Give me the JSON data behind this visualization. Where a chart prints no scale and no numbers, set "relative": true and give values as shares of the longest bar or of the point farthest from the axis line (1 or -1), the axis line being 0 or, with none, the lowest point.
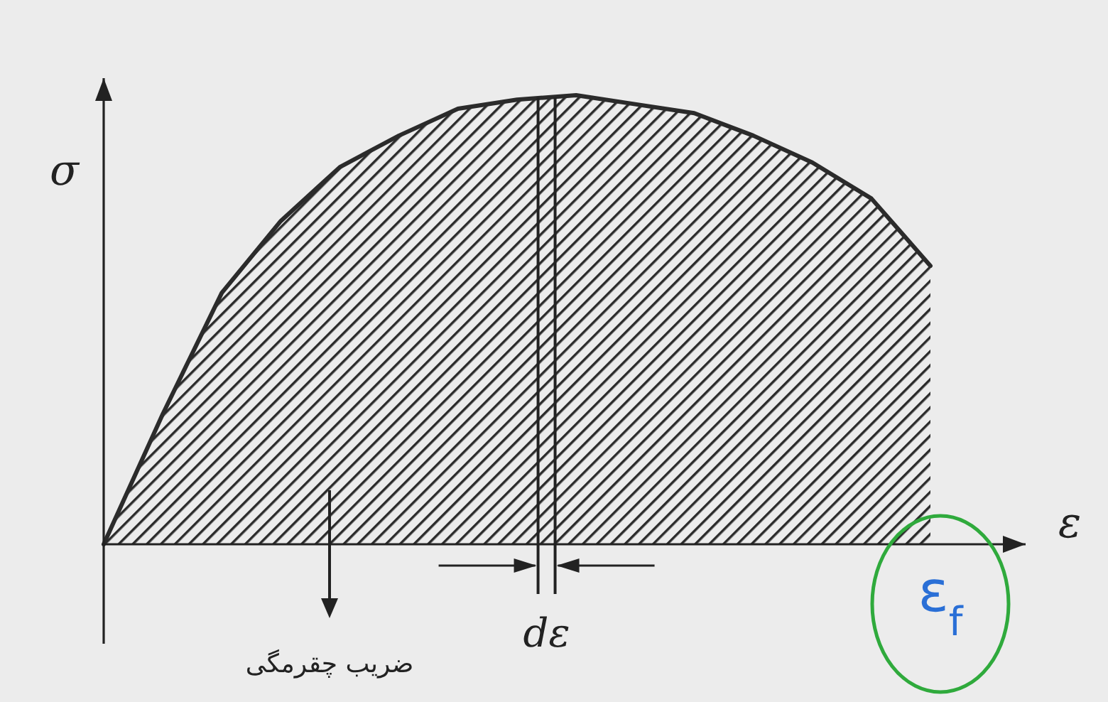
{
  "chart_data": {
    "type": "area",
    "relative": true,
    "xlabel": "ε",
    "ylabel": "σ",
    "categories": [
      null,
      null,
      null,
      null,
      null,
      null,
      null,
      null,
      null,
      null,
      null,
      null,
      null,
      null,
      null
    ],
    "series": [
      {
        "color": "#2b2b2b",
        "values": [
          0,
          0.29,
          0.56,
          0.72,
          0.84,
          0.91,
          0.97,
          0.99,
          1.0,
          0.98,
          0.96,
          0.91,
          0.85,
          0.77,
          0.62
        ]
      }
    ],
    "annotations": [
      "dε",
      "ضریب چقرمگی",
      "ε$_{f}$"
    ]
  }
}
